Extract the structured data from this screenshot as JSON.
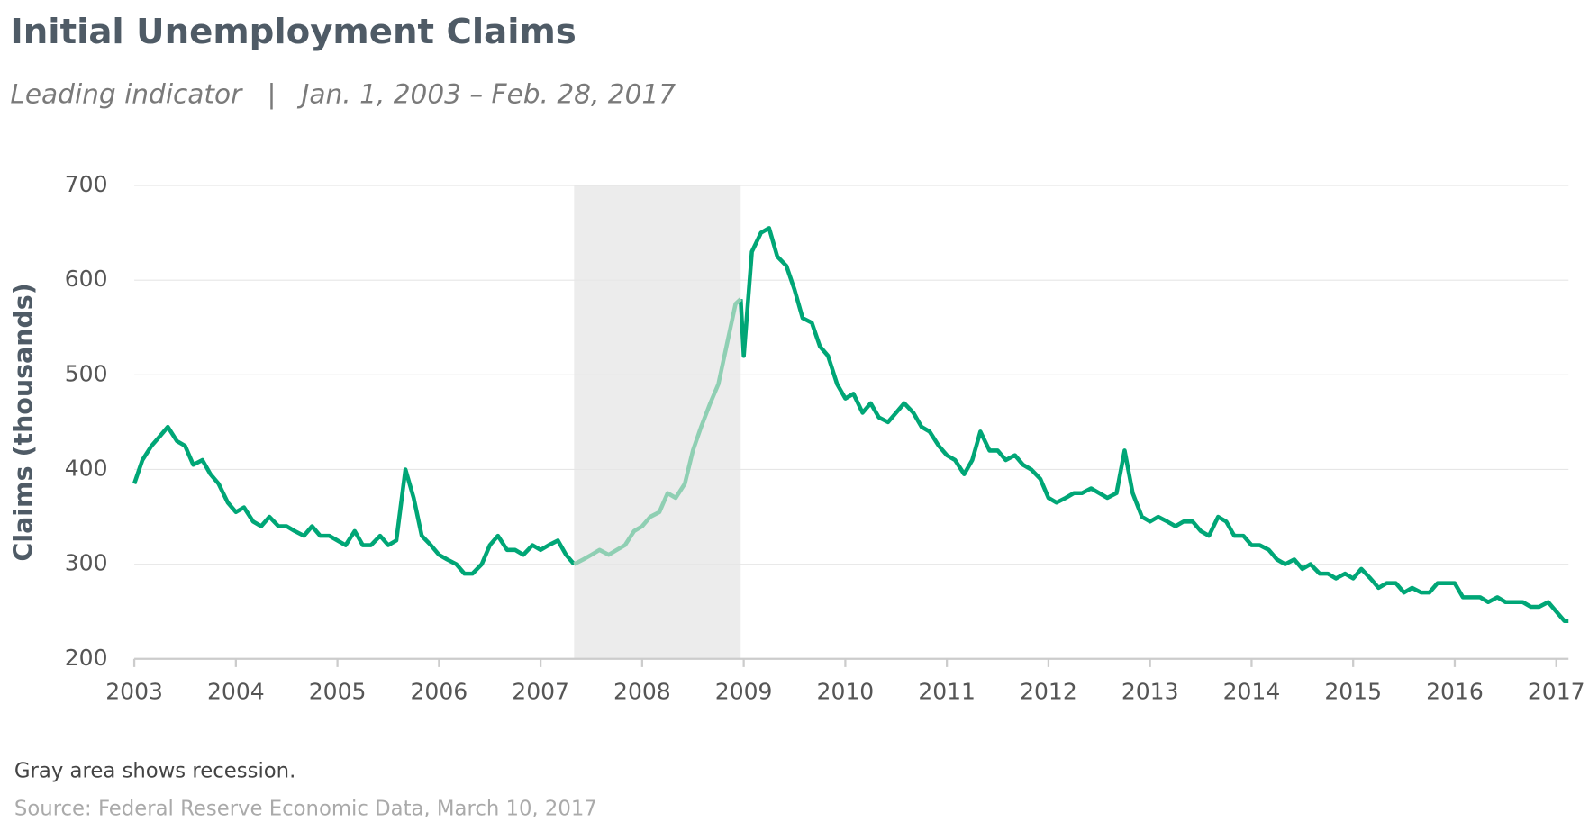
{
  "chart_data": {
    "type": "line",
    "title": "Initial Unemployment Claims",
    "subtitle": "Leading indicator   |   Jan. 1, 2003 – Feb. 28, 2017",
    "y_label": "Claims (thousands)",
    "note": "Gray area shows recession.",
    "source": "Source: Federal Reserve Economic Data, March 10, 2017",
    "ylim": [
      200,
      700
    ],
    "yticks": [
      200,
      300,
      400,
      500,
      600,
      700
    ],
    "xlim": [
      2003,
      2017.12
    ],
    "xticks": [
      2003,
      2004,
      2005,
      2006,
      2007,
      2008,
      2009,
      2010,
      2011,
      2012,
      2013,
      2014,
      2015,
      2016,
      2017
    ],
    "grid": true,
    "shaded_region": [
      2007.33,
      2008.97
    ],
    "shaded_color": "#ececec",
    "x": [
      2003.0,
      2003.08,
      2003.17,
      2003.25,
      2003.33,
      2003.42,
      2003.5,
      2003.58,
      2003.67,
      2003.75,
      2003.83,
      2003.92,
      2004.0,
      2004.08,
      2004.17,
      2004.25,
      2004.33,
      2004.42,
      2004.5,
      2004.58,
      2004.67,
      2004.75,
      2004.83,
      2004.92,
      2005.0,
      2005.08,
      2005.17,
      2005.25,
      2005.33,
      2005.42,
      2005.5,
      2005.58,
      2005.67,
      2005.75,
      2005.83,
      2005.92,
      2006.0,
      2006.08,
      2006.17,
      2006.25,
      2006.33,
      2006.42,
      2006.5,
      2006.58,
      2006.67,
      2006.75,
      2006.83,
      2006.92,
      2007.0,
      2007.08,
      2007.17,
      2007.25,
      2007.33,
      2007.42,
      2007.5,
      2007.58,
      2007.67,
      2007.75,
      2007.83,
      2007.92,
      2008.0,
      2008.08,
      2008.17,
      2008.25,
      2008.33,
      2008.42,
      2008.5,
      2008.58,
      2008.67,
      2008.75,
      2008.83,
      2008.92,
      2008.97,
      2009.0,
      2009.08,
      2009.17,
      2009.25,
      2009.33,
      2009.42,
      2009.5,
      2009.58,
      2009.67,
      2009.75,
      2009.83,
      2009.92,
      2010.0,
      2010.08,
      2010.17,
      2010.25,
      2010.33,
      2010.42,
      2010.5,
      2010.58,
      2010.67,
      2010.75,
      2010.83,
      2010.92,
      2011.0,
      2011.08,
      2011.17,
      2011.25,
      2011.33,
      2011.42,
      2011.5,
      2011.58,
      2011.67,
      2011.75,
      2011.83,
      2011.92,
      2012.0,
      2012.08,
      2012.17,
      2012.25,
      2012.33,
      2012.42,
      2012.5,
      2012.58,
      2012.67,
      2012.75,
      2012.83,
      2012.92,
      2013.0,
      2013.08,
      2013.17,
      2013.25,
      2013.33,
      2013.42,
      2013.5,
      2013.58,
      2013.67,
      2013.75,
      2013.83,
      2013.92,
      2014.0,
      2014.08,
      2014.17,
      2014.25,
      2014.33,
      2014.42,
      2014.5,
      2014.58,
      2014.67,
      2014.75,
      2014.83,
      2014.92,
      2015.0,
      2015.08,
      2015.17,
      2015.25,
      2015.33,
      2015.42,
      2015.5,
      2015.58,
      2015.67,
      2015.75,
      2015.83,
      2015.92,
      2016.0,
      2016.08,
      2016.17,
      2016.25,
      2016.33,
      2016.42,
      2016.5,
      2016.58,
      2016.67,
      2016.75,
      2016.83,
      2016.92,
      2017.0,
      2017.08,
      2017.12
    ],
    "series": [
      {
        "color": "#00a676",
        "values": [
          385,
          410,
          425,
          435,
          445,
          430,
          425,
          405,
          410,
          395,
          385,
          365,
          355,
          360,
          345,
          340,
          350,
          340,
          340,
          335,
          330,
          340,
          330,
          330,
          325,
          320,
          335,
          320,
          320,
          330,
          320,
          325,
          400,
          370,
          330,
          320,
          310,
          305,
          300,
          290,
          290,
          300,
          320,
          330,
          315,
          315,
          310,
          320,
          315,
          320,
          325,
          310,
          300,
          null,
          null,
          null,
          null,
          null,
          null,
          null,
          null,
          null,
          null,
          null,
          null,
          null,
          null,
          null,
          null,
          null,
          null,
          null,
          580,
          520,
          630,
          650,
          655,
          625,
          615,
          590,
          560,
          555,
          530,
          520,
          490,
          475,
          480,
          460,
          470,
          455,
          450,
          460,
          470,
          460,
          445,
          440,
          425,
          415,
          410,
          395,
          410,
          440,
          420,
          420,
          410,
          415,
          405,
          400,
          390,
          370,
          365,
          370,
          375,
          375,
          380,
          375,
          370,
          375,
          420,
          375,
          350,
          345,
          350,
          345,
          340,
          345,
          345,
          335,
          330,
          350,
          345,
          330,
          330,
          320,
          320,
          315,
          305,
          300,
          305,
          295,
          300,
          290,
          290,
          285,
          290,
          285,
          295,
          285,
          275,
          280,
          280,
          270,
          275,
          270,
          270,
          280,
          280,
          280,
          265,
          265,
          265,
          260,
          265,
          260,
          260,
          260,
          255,
          255,
          260,
          250,
          240,
          240
        ]
      },
      {
        "color": "#8fcfb3",
        "values": [
          null,
          null,
          null,
          null,
          null,
          null,
          null,
          null,
          null,
          null,
          null,
          null,
          null,
          null,
          null,
          null,
          null,
          null,
          null,
          null,
          null,
          null,
          null,
          null,
          null,
          null,
          null,
          null,
          null,
          null,
          null,
          null,
          null,
          null,
          null,
          null,
          null,
          null,
          null,
          null,
          null,
          null,
          null,
          null,
          null,
          null,
          null,
          null,
          null,
          null,
          null,
          null,
          300,
          305,
          310,
          315,
          310,
          315,
          320,
          335,
          340,
          350,
          355,
          375,
          370,
          385,
          420,
          445,
          470,
          490,
          530,
          575,
          580,
          null,
          null,
          null,
          null,
          null,
          null,
          null,
          null,
          null,
          null,
          null,
          null,
          null,
          null,
          null,
          null,
          null,
          null,
          null,
          null,
          null,
          null,
          null,
          null,
          null,
          null,
          null,
          null,
          null,
          null,
          null,
          null,
          null,
          null,
          null,
          null,
          null,
          null,
          null,
          null,
          null,
          null,
          null,
          null,
          null,
          null,
          null,
          null,
          null,
          null,
          null,
          null,
          null,
          null,
          null,
          null,
          null,
          null,
          null,
          null,
          null,
          null,
          null,
          null,
          null,
          null,
          null,
          null,
          null,
          null,
          null,
          null,
          null,
          null,
          null,
          null,
          null,
          null,
          null,
          null,
          null,
          null,
          null,
          null,
          null,
          null,
          null,
          null,
          null,
          null,
          null,
          null,
          null,
          null,
          null,
          null,
          null,
          null,
          null
        ]
      }
    ]
  }
}
